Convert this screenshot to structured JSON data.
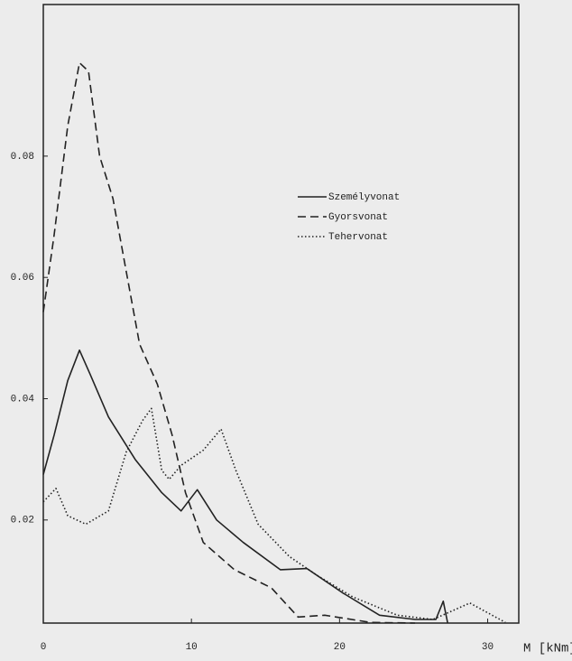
{
  "chart_data": {
    "type": "line",
    "x_label": "M [kNm]",
    "xlim": [
      0,
      32.1
    ],
    "xticks": [
      0,
      10,
      20,
      30
    ],
    "ylim": [
      0.003,
      0.105
    ],
    "yticks": [
      0.02,
      0.04,
      0.06,
      0.08
    ],
    "series": [
      {
        "name": "Személyvonat",
        "color": "#222222",
        "dash": "solid",
        "x": [
          0,
          0.73,
          1.65,
          2.44,
          3.17,
          4.4,
          6.2,
          8.0,
          9.3,
          10.4,
          11.7,
          13.5,
          16.0,
          17.8,
          20.2,
          22.7,
          25.1,
          26.5,
          27.0,
          27.3
        ],
        "values": [
          0.0275,
          0.034,
          0.043,
          0.048,
          0.044,
          0.037,
          0.03,
          0.0245,
          0.0215,
          0.025,
          0.02,
          0.0163,
          0.0118,
          0.012,
          0.008,
          0.0043,
          0.0036,
          0.0036,
          0.0066,
          0.003
        ]
      },
      {
        "name": "Gyorsvonat",
        "color": "#222222",
        "dash": "dashed",
        "x": [
          0,
          0.73,
          1.65,
          2.44,
          3.05,
          3.8,
          4.7,
          5.6,
          6.5,
          7.7,
          8.7,
          9.6,
          10.8,
          12.9,
          15.4,
          17.2,
          19.0,
          22.1,
          25.1
        ],
        "values": [
          0.0543,
          0.067,
          0.085,
          0.0954,
          0.094,
          0.08,
          0.073,
          0.061,
          0.049,
          0.0424,
          0.034,
          0.0245,
          0.0163,
          0.0118,
          0.0088,
          0.004,
          0.0043,
          0.0031,
          0.003
        ]
      },
      {
        "name": "Tehervonat",
        "color": "#222222",
        "dash": "dotted",
        "x": [
          0,
          0.85,
          1.65,
          2.87,
          4.4,
          5.6,
          6.7,
          7.3,
          8.0,
          8.5,
          9.3,
          10.8,
          12.0,
          13.0,
          14.5,
          16.6,
          18.4,
          20.9,
          23.9,
          26.3,
          28.8,
          31.2
        ],
        "values": [
          0.023,
          0.0252,
          0.0207,
          0.0193,
          0.0215,
          0.0312,
          0.0364,
          0.0384,
          0.0282,
          0.0267,
          0.029,
          0.0315,
          0.035,
          0.0282,
          0.0193,
          0.014,
          0.011,
          0.0073,
          0.0043,
          0.0036,
          0.0063,
          0.0031
        ]
      }
    ]
  }
}
